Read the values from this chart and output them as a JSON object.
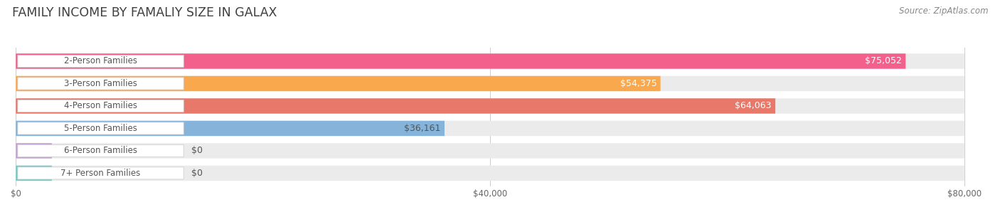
{
  "title": "FAMILY INCOME BY FAMALIY SIZE IN GALAX",
  "source": "Source: ZipAtlas.com",
  "categories": [
    "2-Person Families",
    "3-Person Families",
    "4-Person Families",
    "5-Person Families",
    "6-Person Families",
    "7+ Person Families"
  ],
  "values": [
    75052,
    54375,
    64063,
    36161,
    0,
    0
  ],
  "bar_colors": [
    "#F4608C",
    "#F9A84D",
    "#E8796A",
    "#85B3D9",
    "#C4A3D4",
    "#6DCDC8"
  ],
  "bar_colors_right": [
    "#F4608C",
    "#F9A84D",
    "#F0A090",
    "#A8CCEA",
    "#C4A3D4",
    "#6DCDC8"
  ],
  "label_colors": [
    "#FFFFFF",
    "#FFFFFF",
    "#FFFFFF",
    "#555555",
    "#555555",
    "#555555"
  ],
  "x_max": 80000,
  "x_ticks": [
    0,
    40000,
    80000
  ],
  "x_tick_labels": [
    "$0",
    "$40,000",
    "$80,000"
  ],
  "background_color": "#FFFFFF",
  "bar_bg_color": "#EBEBEB",
  "title_fontsize": 12.5,
  "bar_label_fontsize": 8.5,
  "value_label_fontsize": 9,
  "source_fontsize": 8.5,
  "pill_stub_values": [
    3000,
    3000
  ]
}
